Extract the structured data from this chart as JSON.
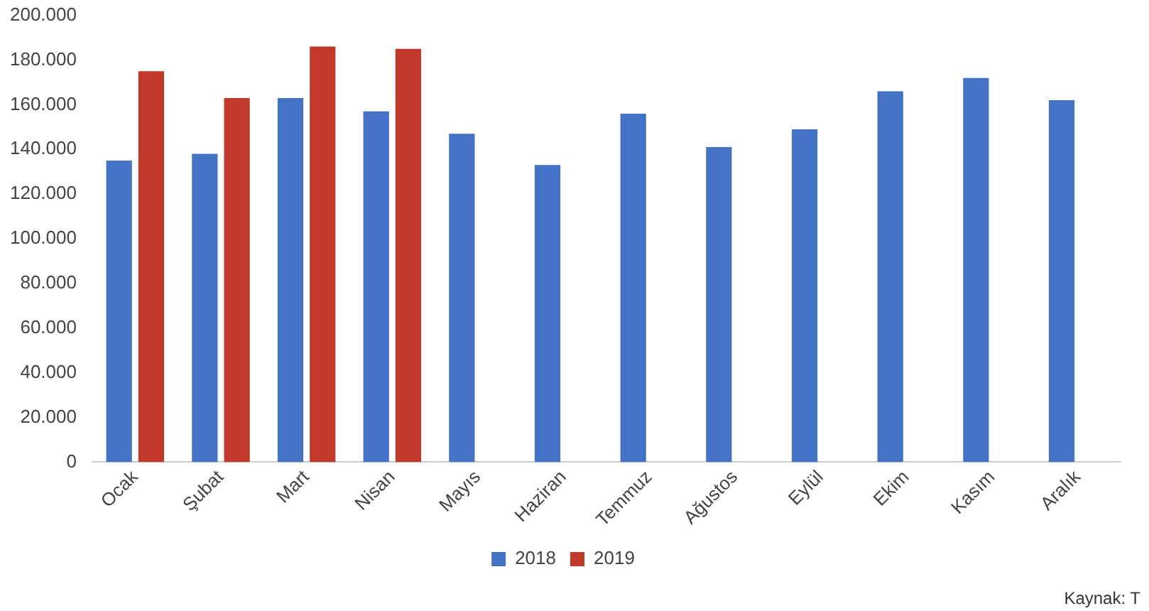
{
  "chart_data": {
    "type": "bar",
    "categories": [
      "Ocak",
      "Şubat",
      "Mart",
      "Nisan",
      "Mayıs",
      "Haziran",
      "Temmuz",
      "Ağustos",
      "Eylül",
      "Ekim",
      "Kasım",
      "Aralık"
    ],
    "series": [
      {
        "name": "2018",
        "color": "#4472c4",
        "values": [
          135000,
          138000,
          163000,
          157000,
          147000,
          133000,
          156000,
          141000,
          149000,
          166000,
          172000,
          162000
        ]
      },
      {
        "name": "2019",
        "color": "#c0392b",
        "values": [
          175000,
          163000,
          186000,
          185000,
          null,
          null,
          null,
          null,
          null,
          null,
          null,
          null
        ]
      }
    ],
    "ylim": [
      0,
      200000
    ],
    "yticks": [
      {
        "value": 0,
        "label": "0"
      },
      {
        "value": 20000,
        "label": "20.000"
      },
      {
        "value": 40000,
        "label": "40.000"
      },
      {
        "value": 60000,
        "label": "60.000"
      },
      {
        "value": 80000,
        "label": "80.000"
      },
      {
        "value": 100000,
        "label": "100.000"
      },
      {
        "value": 120000,
        "label": "120.000"
      },
      {
        "value": 140000,
        "label": "140.000"
      },
      {
        "value": 160000,
        "label": "160.000"
      },
      {
        "value": 180000,
        "label": "180.000"
      },
      {
        "value": 200000,
        "label": "200.000"
      }
    ],
    "grid": false,
    "legend": "bottom",
    "annotations": [
      "Kaynak: T"
    ]
  }
}
